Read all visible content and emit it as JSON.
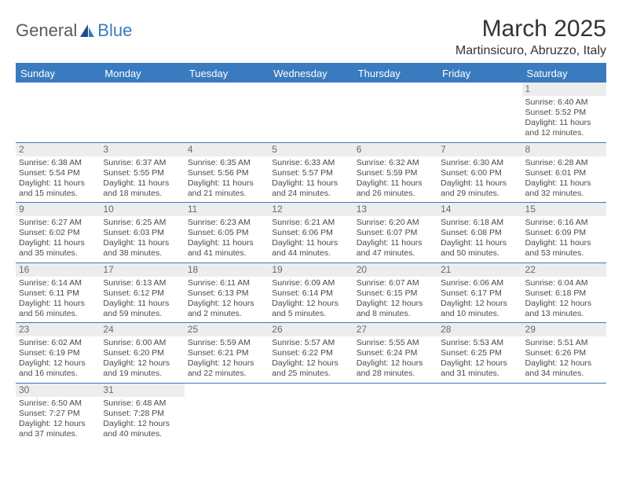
{
  "brand": {
    "general": "General",
    "blue": "Blue"
  },
  "title": "March 2025",
  "location": "Martinsicuro, Abruzzo, Italy",
  "colors": {
    "header_bg": "#3a7bbf",
    "header_text": "#ffffff",
    "rule": "#3a7bbf",
    "daynum_bg": "#ededed",
    "text": "#4a4a4a"
  },
  "weekdays": [
    "Sunday",
    "Monday",
    "Tuesday",
    "Wednesday",
    "Thursday",
    "Friday",
    "Saturday"
  ],
  "weeks": [
    [
      {
        "day": "",
        "sunrise": "",
        "sunset": "",
        "daylight": ""
      },
      {
        "day": "",
        "sunrise": "",
        "sunset": "",
        "daylight": ""
      },
      {
        "day": "",
        "sunrise": "",
        "sunset": "",
        "daylight": ""
      },
      {
        "day": "",
        "sunrise": "",
        "sunset": "",
        "daylight": ""
      },
      {
        "day": "",
        "sunrise": "",
        "sunset": "",
        "daylight": ""
      },
      {
        "day": "",
        "sunrise": "",
        "sunset": "",
        "daylight": ""
      },
      {
        "day": "1",
        "sunrise": "Sunrise: 6:40 AM",
        "sunset": "Sunset: 5:52 PM",
        "daylight": "Daylight: 11 hours and 12 minutes."
      }
    ],
    [
      {
        "day": "2",
        "sunrise": "Sunrise: 6:38 AM",
        "sunset": "Sunset: 5:54 PM",
        "daylight": "Daylight: 11 hours and 15 minutes."
      },
      {
        "day": "3",
        "sunrise": "Sunrise: 6:37 AM",
        "sunset": "Sunset: 5:55 PM",
        "daylight": "Daylight: 11 hours and 18 minutes."
      },
      {
        "day": "4",
        "sunrise": "Sunrise: 6:35 AM",
        "sunset": "Sunset: 5:56 PM",
        "daylight": "Daylight: 11 hours and 21 minutes."
      },
      {
        "day": "5",
        "sunrise": "Sunrise: 6:33 AM",
        "sunset": "Sunset: 5:57 PM",
        "daylight": "Daylight: 11 hours and 24 minutes."
      },
      {
        "day": "6",
        "sunrise": "Sunrise: 6:32 AM",
        "sunset": "Sunset: 5:59 PM",
        "daylight": "Daylight: 11 hours and 26 minutes."
      },
      {
        "day": "7",
        "sunrise": "Sunrise: 6:30 AM",
        "sunset": "Sunset: 6:00 PM",
        "daylight": "Daylight: 11 hours and 29 minutes."
      },
      {
        "day": "8",
        "sunrise": "Sunrise: 6:28 AM",
        "sunset": "Sunset: 6:01 PM",
        "daylight": "Daylight: 11 hours and 32 minutes."
      }
    ],
    [
      {
        "day": "9",
        "sunrise": "Sunrise: 6:27 AM",
        "sunset": "Sunset: 6:02 PM",
        "daylight": "Daylight: 11 hours and 35 minutes."
      },
      {
        "day": "10",
        "sunrise": "Sunrise: 6:25 AM",
        "sunset": "Sunset: 6:03 PM",
        "daylight": "Daylight: 11 hours and 38 minutes."
      },
      {
        "day": "11",
        "sunrise": "Sunrise: 6:23 AM",
        "sunset": "Sunset: 6:05 PM",
        "daylight": "Daylight: 11 hours and 41 minutes."
      },
      {
        "day": "12",
        "sunrise": "Sunrise: 6:21 AM",
        "sunset": "Sunset: 6:06 PM",
        "daylight": "Daylight: 11 hours and 44 minutes."
      },
      {
        "day": "13",
        "sunrise": "Sunrise: 6:20 AM",
        "sunset": "Sunset: 6:07 PM",
        "daylight": "Daylight: 11 hours and 47 minutes."
      },
      {
        "day": "14",
        "sunrise": "Sunrise: 6:18 AM",
        "sunset": "Sunset: 6:08 PM",
        "daylight": "Daylight: 11 hours and 50 minutes."
      },
      {
        "day": "15",
        "sunrise": "Sunrise: 6:16 AM",
        "sunset": "Sunset: 6:09 PM",
        "daylight": "Daylight: 11 hours and 53 minutes."
      }
    ],
    [
      {
        "day": "16",
        "sunrise": "Sunrise: 6:14 AM",
        "sunset": "Sunset: 6:11 PM",
        "daylight": "Daylight: 11 hours and 56 minutes."
      },
      {
        "day": "17",
        "sunrise": "Sunrise: 6:13 AM",
        "sunset": "Sunset: 6:12 PM",
        "daylight": "Daylight: 11 hours and 59 minutes."
      },
      {
        "day": "18",
        "sunrise": "Sunrise: 6:11 AM",
        "sunset": "Sunset: 6:13 PM",
        "daylight": "Daylight: 12 hours and 2 minutes."
      },
      {
        "day": "19",
        "sunrise": "Sunrise: 6:09 AM",
        "sunset": "Sunset: 6:14 PM",
        "daylight": "Daylight: 12 hours and 5 minutes."
      },
      {
        "day": "20",
        "sunrise": "Sunrise: 6:07 AM",
        "sunset": "Sunset: 6:15 PM",
        "daylight": "Daylight: 12 hours and 8 minutes."
      },
      {
        "day": "21",
        "sunrise": "Sunrise: 6:06 AM",
        "sunset": "Sunset: 6:17 PM",
        "daylight": "Daylight: 12 hours and 10 minutes."
      },
      {
        "day": "22",
        "sunrise": "Sunrise: 6:04 AM",
        "sunset": "Sunset: 6:18 PM",
        "daylight": "Daylight: 12 hours and 13 minutes."
      }
    ],
    [
      {
        "day": "23",
        "sunrise": "Sunrise: 6:02 AM",
        "sunset": "Sunset: 6:19 PM",
        "daylight": "Daylight: 12 hours and 16 minutes."
      },
      {
        "day": "24",
        "sunrise": "Sunrise: 6:00 AM",
        "sunset": "Sunset: 6:20 PM",
        "daylight": "Daylight: 12 hours and 19 minutes."
      },
      {
        "day": "25",
        "sunrise": "Sunrise: 5:59 AM",
        "sunset": "Sunset: 6:21 PM",
        "daylight": "Daylight: 12 hours and 22 minutes."
      },
      {
        "day": "26",
        "sunrise": "Sunrise: 5:57 AM",
        "sunset": "Sunset: 6:22 PM",
        "daylight": "Daylight: 12 hours and 25 minutes."
      },
      {
        "day": "27",
        "sunrise": "Sunrise: 5:55 AM",
        "sunset": "Sunset: 6:24 PM",
        "daylight": "Daylight: 12 hours and 28 minutes."
      },
      {
        "day": "28",
        "sunrise": "Sunrise: 5:53 AM",
        "sunset": "Sunset: 6:25 PM",
        "daylight": "Daylight: 12 hours and 31 minutes."
      },
      {
        "day": "29",
        "sunrise": "Sunrise: 5:51 AM",
        "sunset": "Sunset: 6:26 PM",
        "daylight": "Daylight: 12 hours and 34 minutes."
      }
    ],
    [
      {
        "day": "30",
        "sunrise": "Sunrise: 6:50 AM",
        "sunset": "Sunset: 7:27 PM",
        "daylight": "Daylight: 12 hours and 37 minutes."
      },
      {
        "day": "31",
        "sunrise": "Sunrise: 6:48 AM",
        "sunset": "Sunset: 7:28 PM",
        "daylight": "Daylight: 12 hours and 40 minutes."
      },
      {
        "day": "",
        "sunrise": "",
        "sunset": "",
        "daylight": ""
      },
      {
        "day": "",
        "sunrise": "",
        "sunset": "",
        "daylight": ""
      },
      {
        "day": "",
        "sunrise": "",
        "sunset": "",
        "daylight": ""
      },
      {
        "day": "",
        "sunrise": "",
        "sunset": "",
        "daylight": ""
      },
      {
        "day": "",
        "sunrise": "",
        "sunset": "",
        "daylight": ""
      }
    ]
  ]
}
